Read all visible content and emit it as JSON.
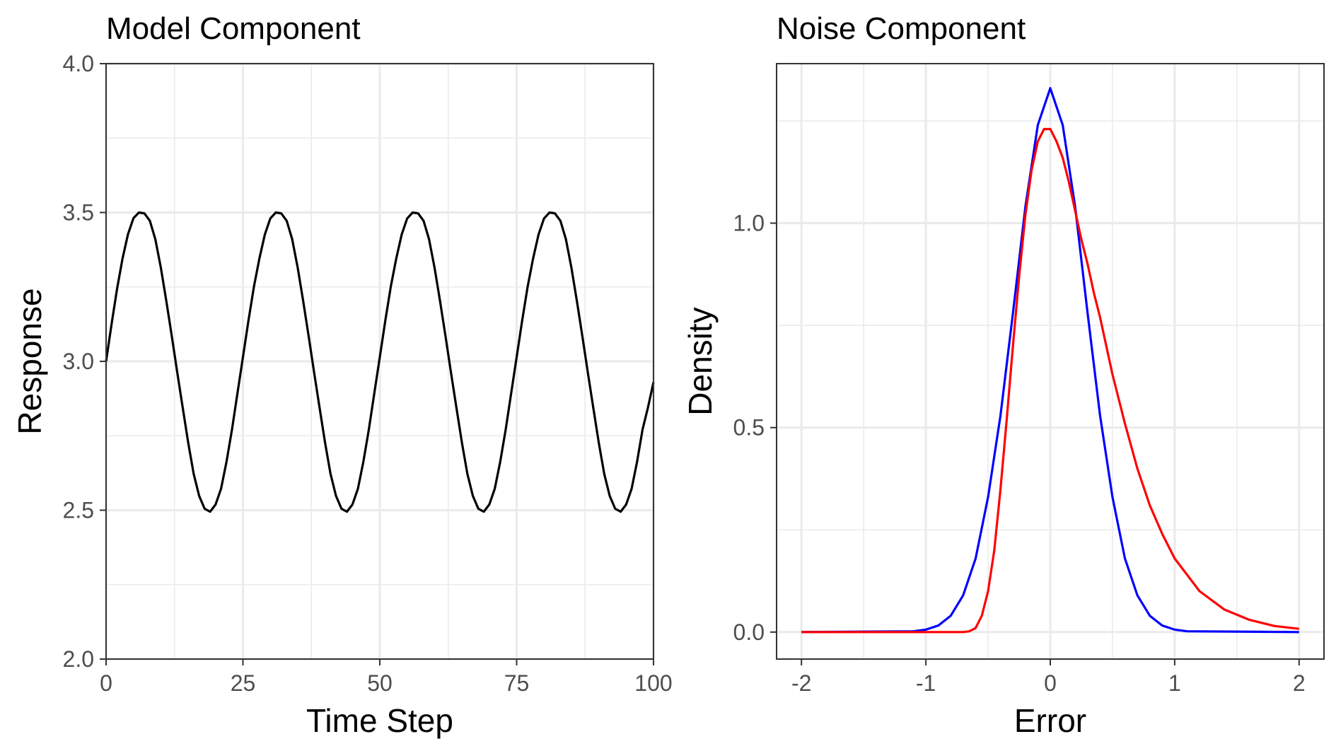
{
  "chart_data": [
    {
      "type": "line",
      "title": "Model Component",
      "xlabel": "Time Step",
      "ylabel": "Response",
      "xlim": [
        0,
        100
      ],
      "ylim": [
        2.0,
        4.0
      ],
      "x_ticks": [
        0,
        25,
        50,
        75,
        100
      ],
      "x_tick_labels": [
        "0",
        "25",
        "50",
        "75",
        "100"
      ],
      "y_ticks": [
        2.0,
        2.5,
        3.0,
        3.5,
        4.0
      ],
      "y_tick_labels": [
        "2.0",
        "2.5",
        "3.0",
        "3.5",
        "4.0"
      ],
      "grid": true,
      "legend": "none",
      "series": [
        {
          "color": "#000000",
          "x": [
            0,
            1,
            2,
            3,
            4,
            5,
            6,
            7,
            8,
            9,
            10,
            11,
            12,
            13,
            14,
            15,
            16,
            17,
            18,
            19,
            20,
            21,
            22,
            23,
            24,
            25,
            26,
            27,
            28,
            29,
            30,
            31,
            32,
            33,
            34,
            35,
            36,
            37,
            38,
            39,
            40,
            41,
            42,
            43,
            44,
            45,
            46,
            47,
            48,
            49,
            50,
            51,
            52,
            53,
            54,
            55,
            56,
            57,
            58,
            59,
            60,
            61,
            62,
            63,
            64,
            65,
            66,
            67,
            68,
            69,
            70,
            71,
            72,
            73,
            74,
            75,
            76,
            77,
            78,
            79,
            80,
            81,
            82,
            83,
            84,
            85,
            86,
            87,
            88,
            89,
            90,
            91,
            92,
            93,
            94,
            95,
            96,
            97,
            98,
            99,
            100
          ],
          "y": [
            3.0,
            3.125,
            3.243,
            3.345,
            3.427,
            3.481,
            3.5,
            3.497,
            3.472,
            3.41,
            3.315,
            3.203,
            3.085,
            2.963,
            2.844,
            2.727,
            2.622,
            2.548,
            2.505,
            2.495,
            2.519,
            2.572,
            2.663,
            2.771,
            2.893,
            3.014,
            3.136,
            3.25,
            3.345,
            3.426,
            3.48,
            3.5,
            3.497,
            3.472,
            3.41,
            3.315,
            3.203,
            3.085,
            2.963,
            2.844,
            2.727,
            2.622,
            2.548,
            2.505,
            2.495,
            2.519,
            2.572,
            2.663,
            2.771,
            2.893,
            3.014,
            3.136,
            3.25,
            3.345,
            3.426,
            3.48,
            3.5,
            3.497,
            3.472,
            3.41,
            3.315,
            3.203,
            3.085,
            2.963,
            2.844,
            2.727,
            2.622,
            2.548,
            2.505,
            2.495,
            2.519,
            2.572,
            2.663,
            2.771,
            2.893,
            3.014,
            3.136,
            3.25,
            3.345,
            3.426,
            3.48,
            3.5,
            3.497,
            3.472,
            3.41,
            3.315,
            3.203,
            3.085,
            2.963,
            2.844,
            2.727,
            2.622,
            2.548,
            2.505,
            2.495,
            2.519,
            2.572,
            2.663,
            2.771,
            2.846,
            2.93
          ]
        }
      ]
    },
    {
      "type": "line",
      "title": "Noise Component",
      "xlabel": "Error",
      "ylabel": "Density",
      "xlim": [
        -2.2,
        2.2
      ],
      "ylim": [
        -0.066,
        1.39
      ],
      "x_ticks": [
        -2,
        -1,
        0,
        1,
        2
      ],
      "x_tick_labels": [
        "-2",
        "-1",
        "0",
        "1",
        "2"
      ],
      "y_ticks": [
        0.0,
        0.5,
        1.0
      ],
      "y_tick_labels": [
        "0.0",
        "0.5",
        "1.0"
      ],
      "grid": true,
      "legend": "none",
      "series": [
        {
          "color": "#0000ff",
          "x": [
            -2.0,
            -1.1,
            -1.0,
            -0.9,
            -0.8,
            -0.7,
            -0.6,
            -0.5,
            -0.4,
            -0.3,
            -0.2,
            -0.1,
            0.0,
            0.1,
            0.2,
            0.3,
            0.4,
            0.5,
            0.6,
            0.7,
            0.8,
            0.9,
            1.0,
            1.1,
            2.0
          ],
          "y": [
            0.0,
            0.002,
            0.006,
            0.016,
            0.04,
            0.09,
            0.18,
            0.33,
            0.53,
            0.78,
            1.04,
            1.24,
            1.33,
            1.24,
            1.04,
            0.78,
            0.53,
            0.33,
            0.18,
            0.09,
            0.04,
            0.016,
            0.006,
            0.002,
            0.0
          ]
        },
        {
          "color": "#ff0000",
          "x": [
            -2.0,
            -0.7,
            -0.65,
            -0.6,
            -0.55,
            -0.5,
            -0.45,
            -0.4,
            -0.35,
            -0.3,
            -0.25,
            -0.2,
            -0.15,
            -0.1,
            -0.05,
            0.0,
            0.05,
            0.1,
            0.15,
            0.2,
            0.25,
            0.3,
            0.35,
            0.4,
            0.5,
            0.6,
            0.7,
            0.8,
            0.9,
            1.0,
            1.1,
            1.2,
            1.4,
            1.6,
            1.8,
            2.0
          ],
          "y": [
            0.0,
            0.0,
            0.002,
            0.01,
            0.04,
            0.1,
            0.2,
            0.35,
            0.52,
            0.7,
            0.87,
            1.02,
            1.13,
            1.2,
            1.23,
            1.23,
            1.2,
            1.16,
            1.1,
            1.03,
            0.96,
            0.9,
            0.83,
            0.77,
            0.63,
            0.51,
            0.4,
            0.31,
            0.24,
            0.18,
            0.14,
            0.1,
            0.055,
            0.03,
            0.015,
            0.008
          ]
        }
      ]
    }
  ]
}
